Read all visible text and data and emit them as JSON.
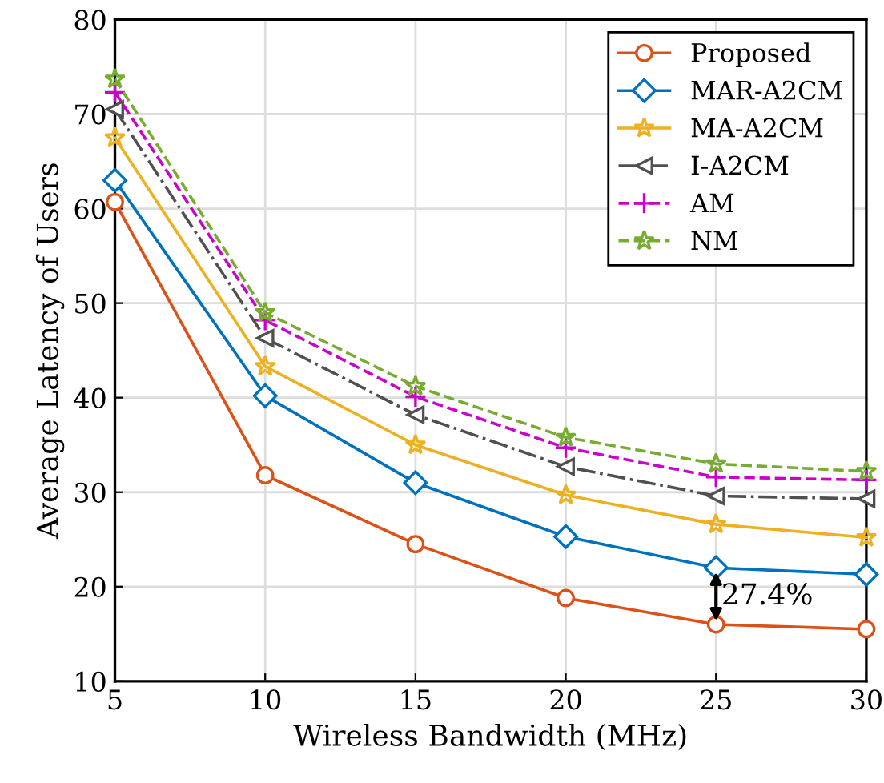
{
  "chart_data": {
    "type": "line",
    "xlabel": "Wireless Bandwidth (MHz)",
    "ylabel": "Average Latency of Users",
    "x": [
      5,
      10,
      15,
      20,
      25,
      30
    ],
    "series": [
      {
        "name": "Proposed",
        "color": "#d95319",
        "marker": "circle",
        "line_style": "solid",
        "values": [
          60.7,
          31.8,
          24.5,
          18.8,
          16.0,
          15.5
        ]
      },
      {
        "name": "MAR-A2CM",
        "color": "#0072bd",
        "marker": "diamond",
        "line_style": "solid",
        "values": [
          63.0,
          40.2,
          31.0,
          25.3,
          22.0,
          21.3
        ]
      },
      {
        "name": "MA-A2CM",
        "color": "#edb120",
        "marker": "star",
        "line_style": "solid",
        "values": [
          67.5,
          43.3,
          35.0,
          29.7,
          26.6,
          25.2
        ]
      },
      {
        "name": "I-A2CM",
        "color": "#505050",
        "marker": "triangle",
        "line_style": "dashdot",
        "values": [
          70.5,
          46.3,
          38.2,
          32.7,
          29.6,
          29.3
        ]
      },
      {
        "name": "AM",
        "color": "#cc00cc",
        "marker": "cross",
        "line_style": "dashed",
        "values": [
          72.3,
          48.2,
          40.1,
          34.7,
          31.6,
          31.3
        ]
      },
      {
        "name": "NM",
        "color": "#77ac30",
        "marker": "star",
        "line_style": "dashed",
        "values": [
          73.7,
          49.0,
          41.2,
          35.8,
          33.0,
          32.2
        ]
      }
    ],
    "xlim": [
      5,
      30
    ],
    "xticks": [
      5,
      10,
      15,
      20,
      25,
      30
    ],
    "ylim": [
      10,
      80
    ],
    "yticks": [
      10,
      20,
      30,
      40,
      50,
      60,
      70,
      80
    ],
    "grid": true,
    "legend": "top right",
    "annotations": [
      "27.4%"
    ]
  }
}
